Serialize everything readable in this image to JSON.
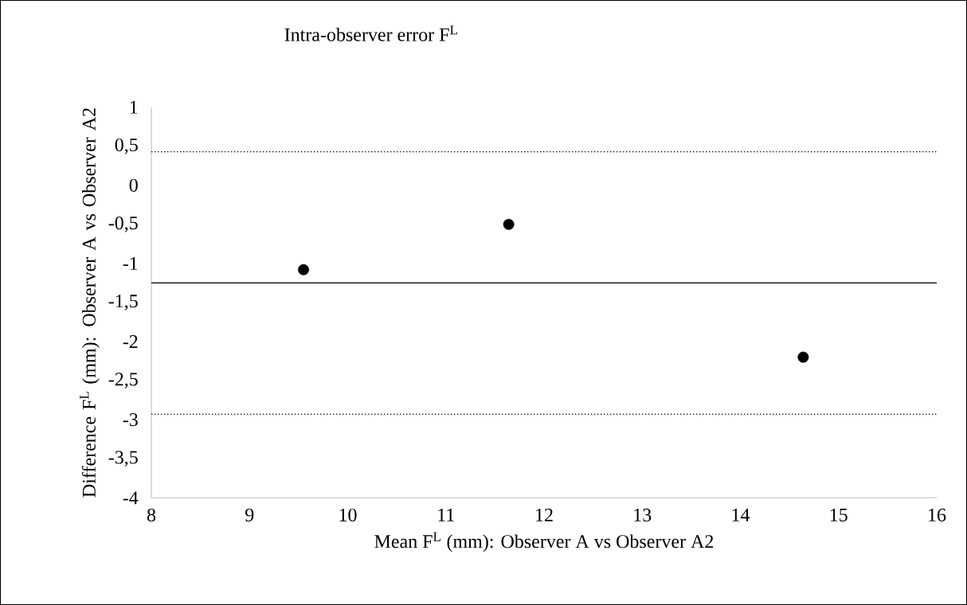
{
  "chart_data": {
    "type": "scatter",
    "title": "Intra-observer error F$^{L}$",
    "xlabel": "Mean F$^{L}$ (mm): Observer A vs Observer A2",
    "ylabel": "Difference F$^{L}$ (mm): Observer A vs Observer A2",
    "x": [
      9.55,
      11.64,
      14.64
    ],
    "values": [
      -1.08,
      -0.5,
      -2.2
    ],
    "color": "#000000",
    "marker": "circle",
    "xlim": [
      8,
      16
    ],
    "xticks": [
      8,
      9,
      10,
      11,
      12,
      13,
      14,
      15,
      16
    ],
    "ylim": [
      -4,
      1
    ],
    "yticks": [
      {
        "value": -4,
        "label": "-4"
      },
      {
        "value": -3.5,
        "label": "-3,5"
      },
      {
        "value": -3,
        "label": "-3"
      },
      {
        "value": -2.5,
        "label": "-2,5"
      },
      {
        "value": -2,
        "label": "-2"
      },
      {
        "value": -1.5,
        "label": "-1,5"
      },
      {
        "value": -1,
        "label": "-1"
      },
      {
        "value": -0.5,
        "label": "-0,5"
      },
      {
        "value": 0,
        "label": "0"
      },
      {
        "value": 0.5,
        "label": "0,5"
      },
      {
        "value": 1,
        "label": "1"
      }
    ],
    "ref_lines": [
      {
        "axis": "y",
        "value": 0.43,
        "line_style": "dotted",
        "color": "#000000"
      },
      {
        "axis": "y",
        "value": -1.25,
        "line_style": "solid",
        "color": "#000000"
      },
      {
        "axis": "y",
        "value": -2.93,
        "line_style": "dotted",
        "color": "#000000"
      }
    ]
  }
}
